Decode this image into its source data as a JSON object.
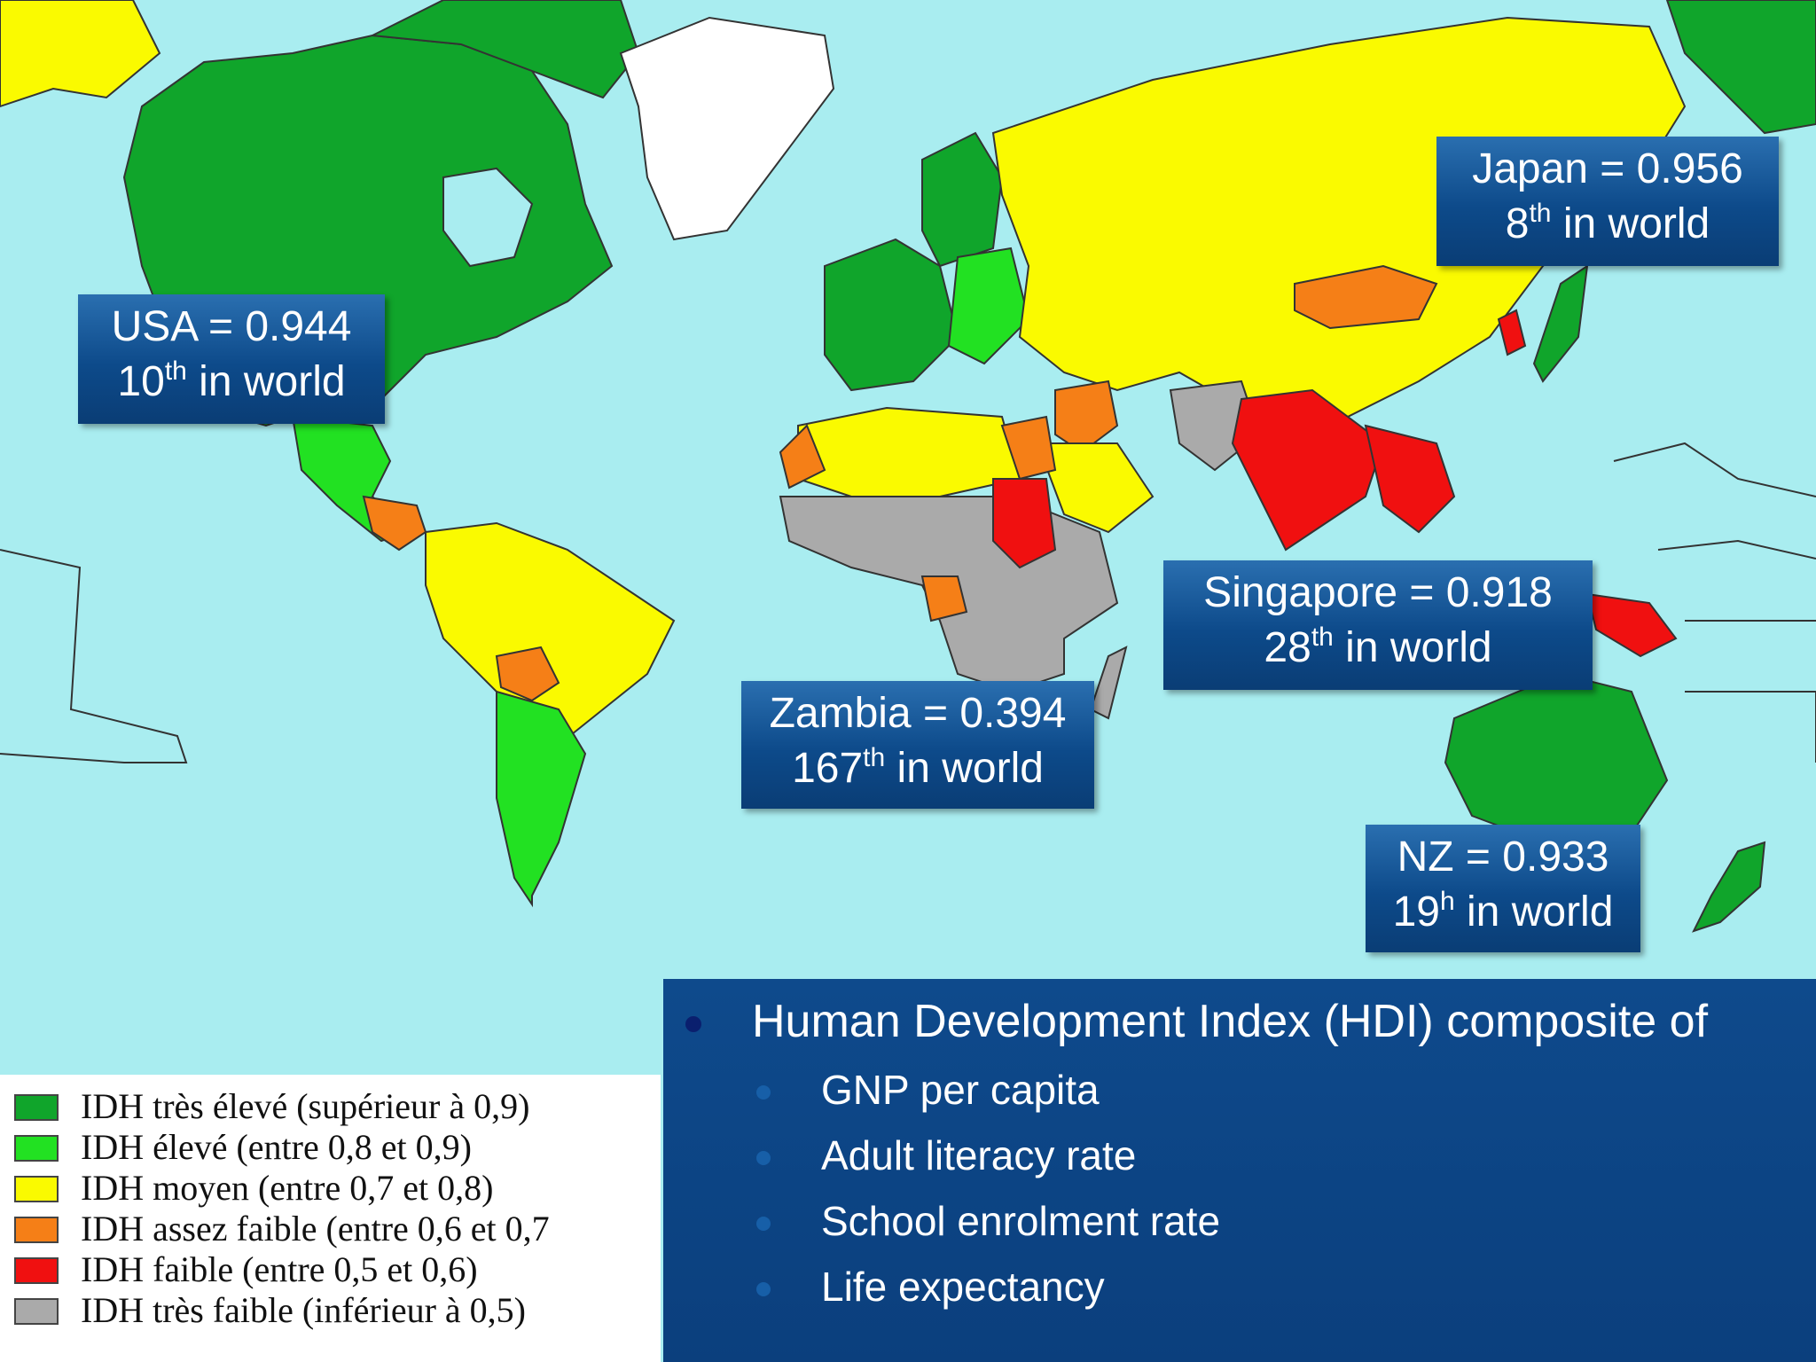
{
  "callouts": {
    "japan": {
      "line1": "Japan  = 0.956",
      "rank": "8",
      "suffix": "th",
      "rest": " in world"
    },
    "usa": {
      "line1": "USA  = 0.944",
      "rank": "10",
      "suffix": "th",
      "rest": " in world"
    },
    "singapore": {
      "line1": "Singapore  = 0.918",
      "rank": "28",
      "suffix": "th",
      "rest": " in world"
    },
    "zambia": {
      "line1": "Zambia = 0.394",
      "rank": "167",
      "suffix": "th",
      "rest": " in world"
    },
    "nz": {
      "line1": "NZ  = 0.933",
      "rank": "19",
      "suffix": "h",
      "rest": " in world"
    }
  },
  "legend": [
    {
      "label": "IDH très élevé (supérieur à 0,9)",
      "color": "#10a52b"
    },
    {
      "label": "IDH élevé (entre 0,8 et 0,9)",
      "color": "#22e122"
    },
    {
      "label": "IDH moyen (entre 0,7 et 0,8)",
      "color": "#fafa00"
    },
    {
      "label": "IDH assez faible (entre 0,6 et 0,7",
      "color": "#f57f17"
    },
    {
      "label": "IDH faible (entre 0,5 et 0,6)",
      "color": "#f01010"
    },
    {
      "label": "IDH très faible (inférieur à 0,5)",
      "color": "#aaaaaa"
    }
  ],
  "hdi": {
    "title": "Human Development Index (HDI) composite of",
    "items": [
      "GNP per capita",
      "Adult literacy rate",
      "School enrolment rate",
      "Life expectancy"
    ]
  },
  "colors": {
    "ocean": "#a9edf0",
    "very_high": "#10a52b",
    "high": "#22e122",
    "medium": "#fafa00",
    "fairly_low": "#f57f17",
    "low": "#f01010",
    "very_low": "#aaaaaa",
    "no_data": "#ffffff"
  }
}
